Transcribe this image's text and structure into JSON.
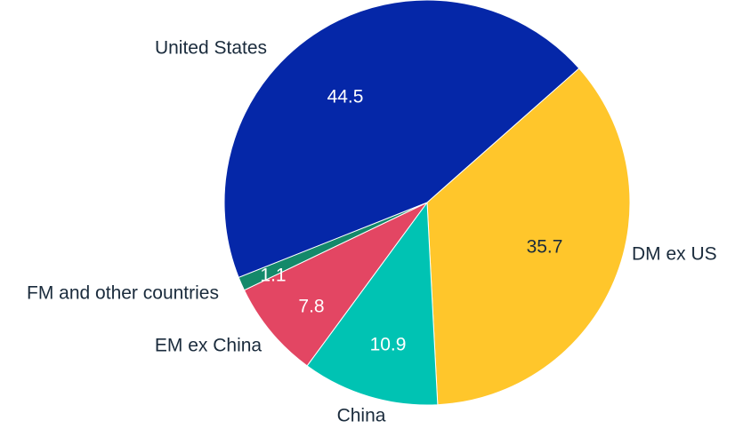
{
  "chart_data": {
    "type": "pie",
    "title": "",
    "unit": "",
    "categories": [
      "United States",
      "DM ex US",
      "China",
      "EM ex China",
      "FM and other countries"
    ],
    "values": [
      44.5,
      35.7,
      10.9,
      7.8,
      1.1
    ],
    "value_labels": [
      "44.5",
      "35.7",
      "10.9",
      "7.8",
      "1.1"
    ],
    "colors": [
      "#0527a8",
      "#ffc62b",
      "#00c3b3",
      "#e34663",
      "#14896a"
    ],
    "value_label_colors": [
      "#ffffff",
      "#1a2b3c",
      "#ffffff",
      "#ffffff",
      "#ffffff"
    ],
    "legend": "none",
    "labels_outside": true
  }
}
